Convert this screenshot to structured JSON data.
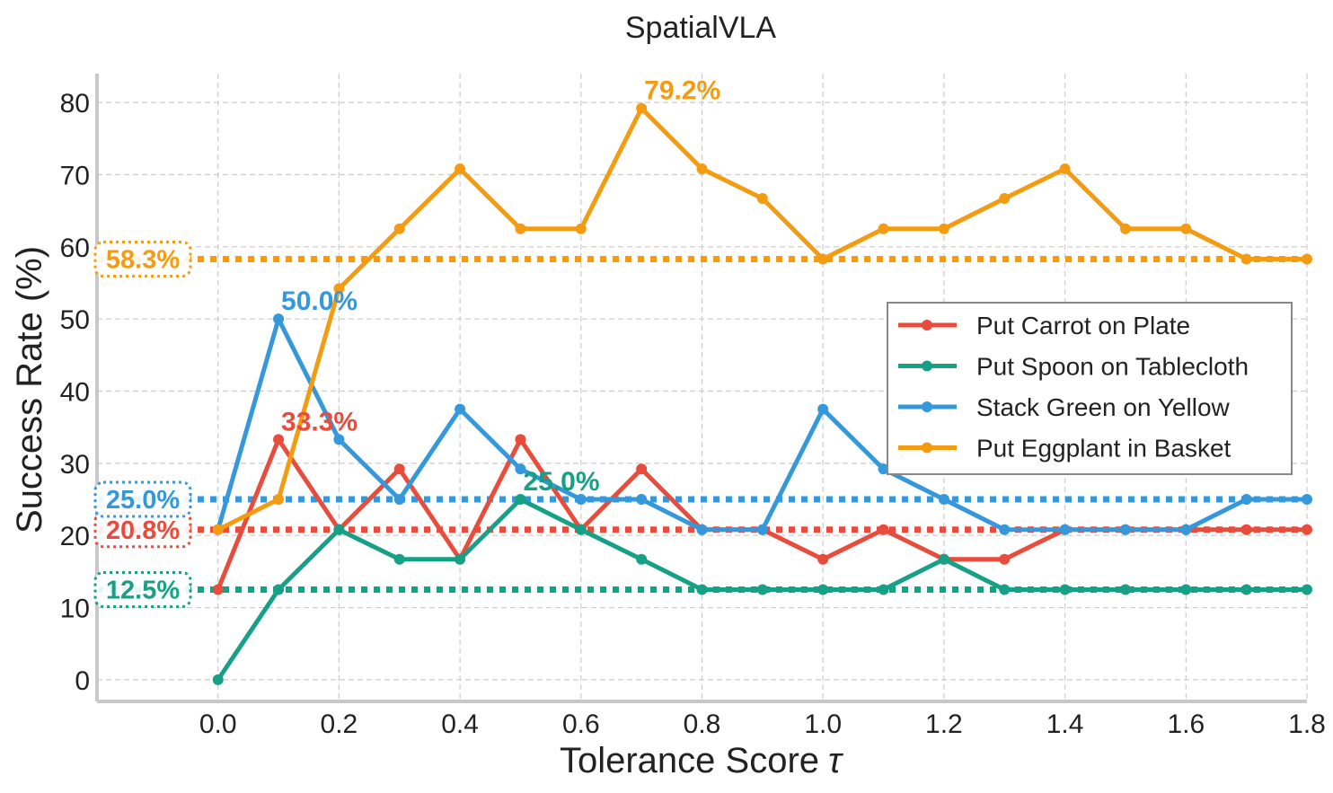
{
  "chart_data": {
    "type": "line",
    "title": "SpatialVLA",
    "xlabel": "Tolerance Score",
    "xlabel_symbol": "τ",
    "ylabel": "Success Rate (%)",
    "xlim": [
      -0.2,
      1.8
    ],
    "ylim": [
      -3,
      84
    ],
    "x_ticks": [
      "0.0",
      "0.2",
      "0.4",
      "0.6",
      "0.8",
      "1.0",
      "1.2",
      "1.4",
      "1.6",
      "1.8"
    ],
    "y_ticks": [
      "0",
      "10",
      "20",
      "30",
      "40",
      "50",
      "60",
      "70",
      "80"
    ],
    "grid": true,
    "legend_position": "center-right",
    "x": [
      0.0,
      0.1,
      0.2,
      0.3,
      0.4,
      0.5,
      0.6,
      0.7,
      0.8,
      0.9,
      1.0,
      1.1,
      1.2,
      1.3,
      1.4,
      1.5,
      1.6,
      1.7,
      1.8
    ],
    "series": [
      {
        "name": "Put Carrot on Plate",
        "color": "#e74c3c",
        "values": [
          12.5,
          33.3,
          20.8,
          29.2,
          16.7,
          33.3,
          20.8,
          29.2,
          20.8,
          20.8,
          16.7,
          20.8,
          16.7,
          16.7,
          20.8,
          20.8,
          20.8,
          20.8,
          20.8
        ],
        "baseline": 20.8,
        "baseline_label": "20.8%",
        "peak_label": "33.3%",
        "peak_x": 0.1,
        "peak_y": 33.3
      },
      {
        "name": "Put Spoon on Tablecloth",
        "color": "#16a085",
        "values": [
          0.0,
          12.5,
          20.8,
          16.7,
          16.7,
          25.0,
          20.8,
          16.7,
          12.5,
          12.5,
          12.5,
          12.5,
          16.7,
          12.5,
          12.5,
          12.5,
          12.5,
          12.5,
          12.5
        ],
        "baseline": 12.5,
        "baseline_label": "12.5%",
        "peak_label": "25.0%",
        "peak_x": 0.5,
        "peak_y": 25.0
      },
      {
        "name": "Stack Green on Yellow",
        "color": "#3498db",
        "values": [
          20.8,
          50.0,
          33.3,
          25.0,
          37.5,
          29.2,
          25.0,
          25.0,
          20.8,
          20.8,
          37.5,
          29.2,
          25.0,
          20.8,
          20.8,
          20.8,
          20.8,
          25.0,
          25.0
        ],
        "baseline": 25.0,
        "baseline_label": "25.0%",
        "peak_label": "50.0%",
        "peak_x": 0.1,
        "peak_y": 50.0
      },
      {
        "name": "Put Eggplant in Basket",
        "color": "#f39c12",
        "values": [
          20.8,
          25.0,
          54.2,
          62.5,
          70.8,
          62.5,
          62.5,
          79.2,
          70.8,
          66.7,
          58.3,
          62.5,
          62.5,
          66.7,
          70.8,
          62.5,
          62.5,
          58.3,
          58.3
        ],
        "baseline": 58.3,
        "baseline_label": "58.3%",
        "peak_label": "79.2%",
        "peak_x": 0.7,
        "peak_y": 79.2
      }
    ]
  }
}
